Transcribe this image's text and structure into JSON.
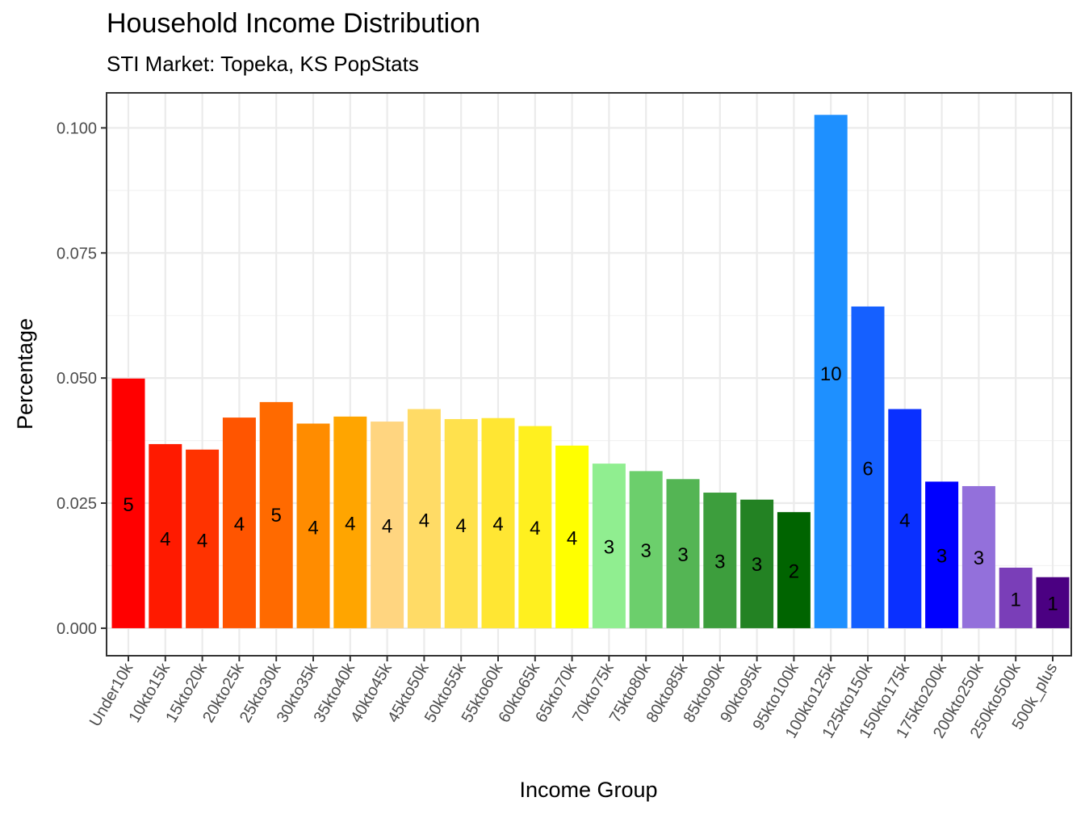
{
  "chart_data": {
    "type": "bar",
    "title": "Household Income Distribution",
    "subtitle": "STI Market: Topeka, KS PopStats",
    "xlabel": "Income Group",
    "ylabel": "Percentage",
    "ylim": [
      -0.0055,
      0.107
    ],
    "yticks": [
      0.0,
      0.025,
      0.05,
      0.075,
      0.1
    ],
    "ytick_labels": [
      "0.000",
      "0.025",
      "0.050",
      "0.075",
      "0.100"
    ],
    "grid": true,
    "legend": "none",
    "categories": [
      "Under10k",
      "10kto15k",
      "15kto20k",
      "20kto25k",
      "25kto30k",
      "30kto35k",
      "35kto40k",
      "40kto45k",
      "45kto50k",
      "50kto55k",
      "55kto60k",
      "60kto65k",
      "65kto70k",
      "70kto75k",
      "75kto80k",
      "80kto85k",
      "85kto90k",
      "90kto95k",
      "95kto100k",
      "100kto125k",
      "125kto150k",
      "150kto175k",
      "175kto200k",
      "200kto250k",
      "250kto500k",
      "500k_plus"
    ],
    "values": [
      0.0499,
      0.0368,
      0.0357,
      0.0421,
      0.0452,
      0.0409,
      0.0423,
      0.0413,
      0.0438,
      0.0418,
      0.042,
      0.0404,
      0.0365,
      0.0329,
      0.0314,
      0.0298,
      0.0271,
      0.0257,
      0.0232,
      0.1026,
      0.0643,
      0.0438,
      0.0293,
      0.0284,
      0.0121,
      0.0102
    ],
    "labels": [
      "5",
      "4",
      "4",
      "4",
      "5",
      "4",
      "4",
      "4",
      "4",
      "4",
      "4",
      "4",
      "4",
      "3",
      "3",
      "3",
      "3",
      "3",
      "2",
      "10",
      "6",
      "4",
      "3",
      "3",
      "1",
      "1"
    ],
    "label_y": [
      0.0247,
      0.0178,
      0.0175,
      0.0208,
      0.0226,
      0.0201,
      0.0209,
      0.0204,
      0.0215,
      0.0205,
      0.0208,
      0.02,
      0.018,
      0.0162,
      0.0155,
      0.0147,
      0.0133,
      0.0127,
      0.0114,
      0.0508,
      0.0319,
      0.0215,
      0.0144,
      0.014,
      0.0057,
      0.0049
    ],
    "colors": [
      "#FF0000",
      "#FF1A00",
      "#FF3300",
      "#FF5500",
      "#FF6A00",
      "#FF8C00",
      "#FFA500",
      "#FFD580",
      "#FFDB66",
      "#FFE14D",
      "#FFE633",
      "#FFF01F",
      "#FFFF00",
      "#90EE90",
      "#6CCF6C",
      "#54B554",
      "#3D9E3D",
      "#238223",
      "#006400",
      "#1E90FF",
      "#1560FF",
      "#0A30FF",
      "#0000FF",
      "#9370DB",
      "#7A3EB8",
      "#4B0082"
    ]
  }
}
